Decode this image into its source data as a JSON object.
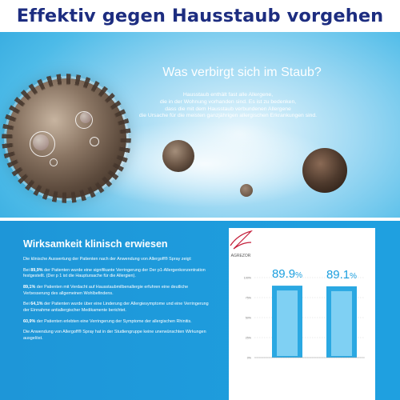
{
  "header": {
    "title": "Effektiv gegen Hausstaub vorgehen"
  },
  "hero": {
    "title": "Was verbirgt sich im Staub?",
    "lines": [
      "Hausstaub enthält fast alle Allergene,",
      "die in der Wohnung vorhanden sind. Es ist zu bedenken,",
      "dass die mit dem Hausstaub verbundenen Allergene",
      "die Ursache für die meisten ganzjährigen allergischen Erkrankungen sind."
    ]
  },
  "study": {
    "title": "Wirksamkeit klinisch erwiesen",
    "intro": "Die klinische Auswertung der Patienten nach der Anwendung von Allergoff® Spray zeigt:",
    "findings": [
      {
        "value": "89,9%",
        "text": " der Patienten wurde eine signifikante Verringerung der Der p1-Allergenkonzentration festgestellt. (Der p 1 ist die Hauptursache für die Allergien)."
      },
      {
        "value": "89,1%",
        "text": " der Patienten mit Verdacht auf Hausstaubmilbenallergie erfuhren eine deutliche Verbesserung des allgemeinen Wohlbefindens."
      },
      {
        "value": "64,1%",
        "text": " der Patienten wurde über eine Linderung der Allergiesymptome und eine Verringerung der Einnahme antiallergischer Medikamente berichtet."
      },
      {
        "value": "60,9%",
        "text": " der Patienten erlebten eine Verringerung der Symptome der allergischen Rhinitis."
      }
    ],
    "prefix_first": "Bei ",
    "prefix_third": "Bei ",
    "outro": "Die Anwendung von Allergoff® Spray hat in der Studiengruppe keine unerwünschten Wirkungen ausgelöst."
  },
  "chart_data": {
    "type": "bar",
    "categories": [
      "",
      ""
    ],
    "values": [
      89.9,
      89.1
    ],
    "value_labels": [
      "89.9%",
      "89.1%"
    ],
    "ylim": [
      0,
      100
    ],
    "yticks": [
      0,
      25,
      50,
      75,
      100
    ],
    "ytick_labels": [
      "0%",
      "25%",
      "50%",
      "75%",
      "100%"
    ],
    "colors": {
      "bar": "#2aa8e2",
      "bar_light": "#7fd0f3",
      "label": "#1b9fdf"
    }
  },
  "logo": {
    "text": "AGREZOR"
  },
  "colors": {
    "brand_blue": "#1d2d80",
    "section_blue": "#1e96d8"
  }
}
